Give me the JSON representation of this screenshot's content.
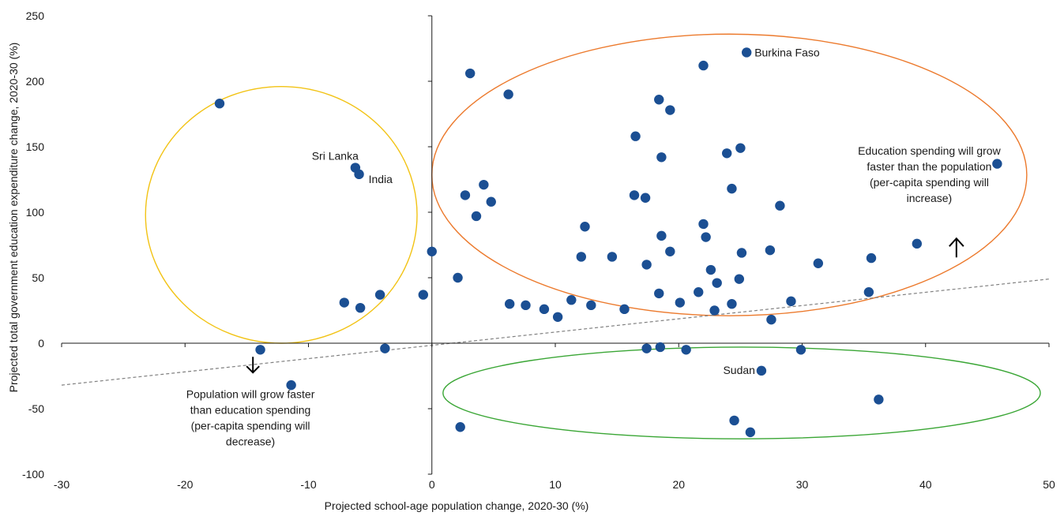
{
  "chart_data": {
    "type": "scatter",
    "title": "",
    "xlabel": "Projected school-age population change, 2020-30 (%)",
    "ylabel": "Projected total government education expenditure change, 2020-30 (%)",
    "xlim": [
      -30,
      50
    ],
    "ylim": [
      -100,
      250
    ],
    "xticks": [
      -30,
      -20,
      -10,
      0,
      10,
      20,
      30,
      40,
      50
    ],
    "yticks": [
      -100,
      -50,
      0,
      50,
      100,
      150,
      200,
      250
    ],
    "grid": false,
    "point_color": "#1b4f93",
    "points": [
      {
        "x": -17.2,
        "y": 183
      },
      {
        "x": -6.2,
        "y": 134,
        "label": "Sri Lanka"
      },
      {
        "x": -5.9,
        "y": 129,
        "label": "India"
      },
      {
        "x": -7.1,
        "y": 31
      },
      {
        "x": -5.8,
        "y": 27
      },
      {
        "x": -4.2,
        "y": 37
      },
      {
        "x": -13.9,
        "y": -5
      },
      {
        "x": -3.8,
        "y": -4
      },
      {
        "x": -11.4,
        "y": -32
      },
      {
        "x": -0.7,
        "y": 37
      },
      {
        "x": 0.0,
        "y": 70
      },
      {
        "x": 2.1,
        "y": 50
      },
      {
        "x": 2.3,
        "y": -64
      },
      {
        "x": 2.7,
        "y": 113
      },
      {
        "x": 3.1,
        "y": 206
      },
      {
        "x": 3.6,
        "y": 97
      },
      {
        "x": 4.2,
        "y": 121
      },
      {
        "x": 4.8,
        "y": 108
      },
      {
        "x": 6.2,
        "y": 190
      },
      {
        "x": 6.3,
        "y": 30
      },
      {
        "x": 7.6,
        "y": 29
      },
      {
        "x": 9.1,
        "y": 26
      },
      {
        "x": 10.2,
        "y": 20
      },
      {
        "x": 11.3,
        "y": 33
      },
      {
        "x": 12.1,
        "y": 66
      },
      {
        "x": 12.4,
        "y": 89
      },
      {
        "x": 12.9,
        "y": 29
      },
      {
        "x": 14.6,
        "y": 66
      },
      {
        "x": 15.6,
        "y": 26
      },
      {
        "x": 16.4,
        "y": 113
      },
      {
        "x": 16.5,
        "y": 158
      },
      {
        "x": 17.3,
        "y": 111
      },
      {
        "x": 17.4,
        "y": 60
      },
      {
        "x": 17.4,
        "y": -4
      },
      {
        "x": 18.4,
        "y": 186
      },
      {
        "x": 18.4,
        "y": 38
      },
      {
        "x": 18.5,
        "y": -3
      },
      {
        "x": 18.6,
        "y": 82
      },
      {
        "x": 18.6,
        "y": 142
      },
      {
        "x": 19.3,
        "y": 178
      },
      {
        "x": 19.3,
        "y": 70
      },
      {
        "x": 20.1,
        "y": 31
      },
      {
        "x": 20.6,
        "y": -5
      },
      {
        "x": 21.6,
        "y": 39
      },
      {
        "x": 22.0,
        "y": 212
      },
      {
        "x": 22.0,
        "y": 91
      },
      {
        "x": 22.2,
        "y": 81
      },
      {
        "x": 22.6,
        "y": 56
      },
      {
        "x": 22.9,
        "y": 25
      },
      {
        "x": 23.1,
        "y": 46
      },
      {
        "x": 23.9,
        "y": 145
      },
      {
        "x": 24.3,
        "y": 118
      },
      {
        "x": 24.3,
        "y": 30
      },
      {
        "x": 24.5,
        "y": -59
      },
      {
        "x": 24.9,
        "y": 49
      },
      {
        "x": 25.0,
        "y": 149
      },
      {
        "x": 25.1,
        "y": 69
      },
      {
        "x": 25.5,
        "y": 222,
        "label": "Burkina Faso"
      },
      {
        "x": 25.8,
        "y": -68
      },
      {
        "x": 26.7,
        "y": -21,
        "label": "Sudan"
      },
      {
        "x": 27.4,
        "y": 71
      },
      {
        "x": 27.5,
        "y": 18
      },
      {
        "x": 28.2,
        "y": 105
      },
      {
        "x": 29.1,
        "y": 32
      },
      {
        "x": 29.9,
        "y": -5
      },
      {
        "x": 31.3,
        "y": 61
      },
      {
        "x": 35.4,
        "y": 39
      },
      {
        "x": 35.6,
        "y": 65
      },
      {
        "x": 36.2,
        "y": -43
      },
      {
        "x": 39.3,
        "y": 76
      },
      {
        "x": 45.8,
        "y": 137
      }
    ],
    "trendline": {
      "x": [
        -30,
        50
      ],
      "y": [
        -32,
        49
      ],
      "color": "#808080",
      "style": "dashed"
    },
    "ellipses": [
      {
        "name": "yellow",
        "color": "#f2c315",
        "cx": -12.2,
        "cy": 98,
        "rx": 11.0,
        "ry": 98
      },
      {
        "name": "orange",
        "color": "#ec7a2d",
        "cx": 24.1,
        "cy": 128.5,
        "rx": 24.1,
        "ry": 107.5
      },
      {
        "name": "green",
        "color": "#3aa635",
        "cx": 25.1,
        "cy": -38,
        "rx": 24.2,
        "ry": 35
      }
    ],
    "annotations": {
      "upper": {
        "lines": [
          "Education spending will grow",
          "faster than the population",
          "(per-capita spending will",
          "increase)"
        ],
        "x": 40.3,
        "y": 144
      },
      "lower": {
        "lines": [
          "Population will grow faster",
          "than education spending",
          "(per-capita spending will",
          "decrease)"
        ],
        "x": -14.7,
        "y": -42
      },
      "up_arrow": {
        "x": 42.5,
        "y": 80,
        "direction": "up"
      },
      "down_arrow": {
        "x": -14.5,
        "y": -20,
        "direction": "down"
      }
    }
  }
}
